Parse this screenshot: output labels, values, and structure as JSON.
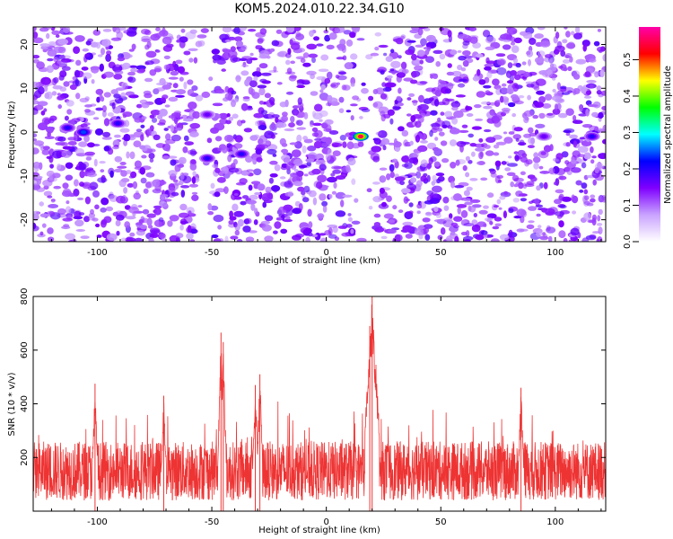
{
  "title": "KOM5.2024.010.22.34.G10",
  "chart_data": [
    {
      "type": "heatmap",
      "title": "KOM5.2024.010.22.34.G10",
      "xlabel": "Height of straight line (km)",
      "ylabel": "Frequency (Hz)",
      "xlim": [
        -128,
        122
      ],
      "ylim": [
        -25,
        24
      ],
      "x_ticks": [
        -100,
        -50,
        0,
        50,
        100
      ],
      "y_ticks": [
        -20,
        -10,
        0,
        10,
        20
      ],
      "colorbar": {
        "label": "Normalized spectral amplitude",
        "range": [
          0.0,
          0.59
        ],
        "ticks": [
          0.0,
          0.1,
          0.2,
          0.3,
          0.4,
          0.5
        ],
        "colormap": [
          "#ffffff",
          "#c9a3ff",
          "#7f00ff",
          "#0000ff",
          "#00ffff",
          "#00ff00",
          "#ffff00",
          "#ff0000",
          "#ff00aa"
        ]
      },
      "peaks": [
        {
          "x": 15,
          "y": -1,
          "value": 0.55
        },
        {
          "x": -106,
          "y": 0,
          "value": 0.24
        },
        {
          "x": -113,
          "y": 1,
          "value": 0.2
        },
        {
          "x": -91,
          "y": 2,
          "value": 0.2
        },
        {
          "x": -52,
          "y": -6,
          "value": 0.2
        },
        {
          "x": -37,
          "y": -5,
          "value": 0.2
        },
        {
          "x": -52,
          "y": 4,
          "value": 0.16
        },
        {
          "x": 116,
          "y": -1,
          "value": 0.2
        },
        {
          "x": 95,
          "y": -1,
          "value": 0.16
        }
      ]
    },
    {
      "type": "line",
      "xlabel": "Height of straight line (km)",
      "ylabel": "SNR (10 * v/v)",
      "xlim": [
        -128,
        122
      ],
      "ylim": [
        0,
        800
      ],
      "x_ticks": [
        -100,
        -50,
        0,
        50,
        100
      ],
      "y_ticks": [
        200,
        400,
        600,
        800
      ],
      "line_color": "#ee3333",
      "baseline": {
        "low": 40,
        "high": 260
      },
      "peaks": [
        {
          "x": 20,
          "y": 800
        },
        {
          "x": 19,
          "y": 690
        },
        {
          "x": -46,
          "y": 665
        },
        {
          "x": -45,
          "y": 630
        },
        {
          "x": -29,
          "y": 510
        },
        {
          "x": -31,
          "y": 470
        },
        {
          "x": -101,
          "y": 475
        },
        {
          "x": -71,
          "y": 430
        },
        {
          "x": 85,
          "y": 460
        }
      ]
    }
  ]
}
